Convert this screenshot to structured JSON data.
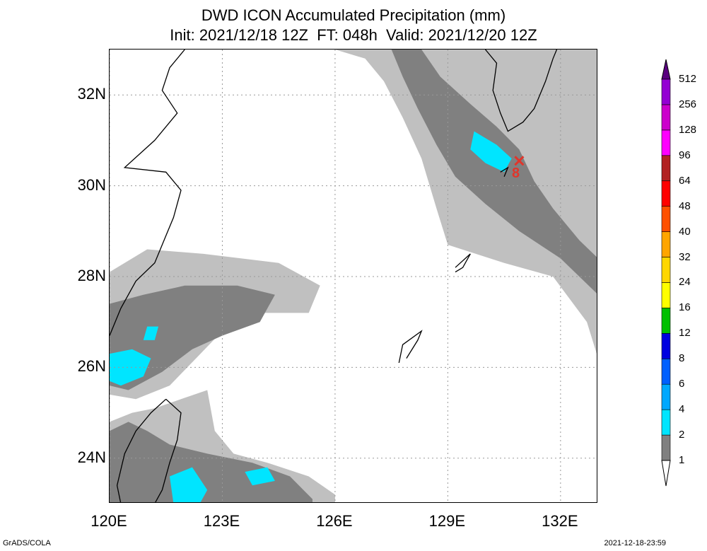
{
  "titles": {
    "line1": "DWD ICON Accumulated Precipitation (mm)",
    "line2": "Init: 2021/12/18 12Z  FT: 048h  Valid: 2021/12/20 12Z"
  },
  "footer": {
    "left": "GrADS/COLA",
    "right": "2021-12-18-23:59"
  },
  "storm_marker": {
    "label": "8",
    "lon": 130.9,
    "lat": 30.55,
    "color": "#e0352b"
  },
  "chart_data": {
    "type": "heatmap",
    "title": "DWD ICON Accumulated Precipitation (mm)",
    "subtitle": "Init: 2021/12/18 12Z  FT: 048h  Valid: 2021/12/20 12Z",
    "xlabel": "",
    "ylabel": "",
    "xlim": [
      120,
      133
    ],
    "ylim": [
      23,
      33
    ],
    "x_ticks": [
      "120E",
      "123E",
      "126E",
      "129E",
      "132E"
    ],
    "x_tick_values": [
      120,
      123,
      126,
      129,
      132
    ],
    "y_ticks": [
      "24N",
      "26N",
      "28N",
      "30N",
      "32N"
    ],
    "y_tick_values": [
      24,
      26,
      28,
      30,
      32
    ],
    "grid": true,
    "colorbar": {
      "levels": [
        "1",
        "2",
        "4",
        "6",
        "8",
        "12",
        "16",
        "24",
        "32",
        "40",
        "48",
        "64",
        "96",
        "128",
        "256",
        "512"
      ],
      "colors": [
        "#c0c0c0",
        "#808080",
        "#00e5ff",
        "#00a8ff",
        "#0060ff",
        "#0000e0",
        "#00c000",
        "#ffff00",
        "#ffd700",
        "#ffa500",
        "#ff5000",
        "#ff0000",
        "#b22222",
        "#ff00ff",
        "#cc00cc",
        "#9400d3",
        "#5a0080"
      ],
      "placement": "right"
    },
    "regions": [
      {
        "level": "1-2 mm",
        "color": "#c0c0c0",
        "polygon": [
          [
            126,
            33
          ],
          [
            126.8,
            32.8
          ],
          [
            127.3,
            32.3
          ],
          [
            127.8,
            31.5
          ],
          [
            128.3,
            30.6
          ],
          [
            128.7,
            29.5
          ],
          [
            129.0,
            28.7
          ],
          [
            130.5,
            28.3
          ],
          [
            131.8,
            28.0
          ],
          [
            132.7,
            27.0
          ],
          [
            133,
            26.2
          ],
          [
            133,
            33
          ]
        ]
      },
      {
        "level": "1-2 mm",
        "color": "#c0c0c0",
        "polygon": [
          [
            120,
            28.1
          ],
          [
            121.0,
            28.6
          ],
          [
            122.5,
            28.5
          ],
          [
            124.5,
            28.3
          ],
          [
            125.6,
            27.8
          ],
          [
            125.3,
            27.2
          ],
          [
            124.0,
            27.2
          ],
          [
            123.0,
            26.8
          ],
          [
            122.3,
            26.2
          ],
          [
            121.6,
            25.6
          ],
          [
            120.7,
            25.3
          ],
          [
            120,
            25.4
          ]
        ]
      },
      {
        "level": "1-2 mm",
        "color": "#c0c0c0",
        "polygon": [
          [
            120,
            24.8
          ],
          [
            120.6,
            25.0
          ],
          [
            121.2,
            25.1
          ],
          [
            121.9,
            25.3
          ],
          [
            122.6,
            25.5
          ],
          [
            122.8,
            24.6
          ],
          [
            123.3,
            24.1
          ],
          [
            124.2,
            23.9
          ],
          [
            125.3,
            23.6
          ],
          [
            126,
            23.2
          ],
          [
            126,
            23
          ],
          [
            120,
            23
          ]
        ]
      },
      {
        "level": "2-4 mm",
        "color": "#808080",
        "polygon": [
          [
            127.5,
            33
          ],
          [
            128.3,
            33
          ],
          [
            128.8,
            32.4
          ],
          [
            129.6,
            31.8
          ],
          [
            130.3,
            31.3
          ],
          [
            130.9,
            30.8
          ],
          [
            131.3,
            30.1
          ],
          [
            131.8,
            29.5
          ],
          [
            132.5,
            28.8
          ],
          [
            133,
            28.4
          ],
          [
            133,
            27.6
          ],
          [
            132.0,
            28.4
          ],
          [
            130.9,
            29.0
          ],
          [
            130.0,
            29.6
          ],
          [
            129.2,
            30.2
          ],
          [
            128.7,
            30.9
          ],
          [
            128.2,
            31.7
          ],
          [
            127.8,
            32.4
          ]
        ]
      },
      {
        "level": "2-4 mm",
        "color": "#808080",
        "polygon": [
          [
            120,
            27.4
          ],
          [
            120.9,
            27.6
          ],
          [
            122.0,
            27.8
          ],
          [
            123.4,
            27.8
          ],
          [
            124.4,
            27.6
          ],
          [
            124.0,
            27.0
          ],
          [
            123.0,
            26.7
          ],
          [
            122.2,
            26.4
          ],
          [
            121.4,
            25.9
          ],
          [
            120.5,
            25.5
          ],
          [
            120,
            25.6
          ]
        ]
      },
      {
        "level": "2-4 mm",
        "color": "#808080",
        "polygon": [
          [
            120,
            24.6
          ],
          [
            120.5,
            24.8
          ],
          [
            121.0,
            24.6
          ],
          [
            121.6,
            24.3
          ],
          [
            122.6,
            24.1
          ],
          [
            123.8,
            23.9
          ],
          [
            124.8,
            23.6
          ],
          [
            125.4,
            23.1
          ],
          [
            125.4,
            23
          ],
          [
            120,
            23
          ]
        ]
      },
      {
        "level": "4-6 mm",
        "color": "#00e5ff",
        "polygon": [
          [
            129.7,
            31.2
          ],
          [
            130.3,
            30.9
          ],
          [
            130.7,
            30.6
          ],
          [
            130.5,
            30.3
          ],
          [
            130.0,
            30.5
          ],
          [
            129.6,
            30.8
          ]
        ]
      },
      {
        "level": "4-6 mm",
        "color": "#00e5ff",
        "polygon": [
          [
            120,
            26.3
          ],
          [
            120.6,
            26.4
          ],
          [
            121.1,
            26.2
          ],
          [
            120.9,
            25.8
          ],
          [
            120.3,
            25.6
          ],
          [
            120,
            25.7
          ]
        ]
      },
      {
        "level": "4-6 mm",
        "color": "#00e5ff",
        "polygon": [
          [
            121.0,
            26.9
          ],
          [
            121.3,
            26.9
          ],
          [
            121.2,
            26.6
          ],
          [
            120.9,
            26.6
          ]
        ]
      },
      {
        "level": "4-6 mm",
        "color": "#00e5ff",
        "polygon": [
          [
            121.6,
            23.6
          ],
          [
            122.2,
            23.8
          ],
          [
            122.6,
            23.3
          ],
          [
            122.4,
            23
          ],
          [
            121.7,
            23
          ]
        ]
      },
      {
        "level": "4-6 mm",
        "color": "#00e5ff",
        "polygon": [
          [
            123.6,
            23.7
          ],
          [
            124.2,
            23.8
          ],
          [
            124.4,
            23.5
          ],
          [
            123.8,
            23.4
          ]
        ]
      }
    ],
    "coastlines": [
      {
        "name": "China coast",
        "points": [
          [
            122.0,
            33
          ],
          [
            121.6,
            32.6
          ],
          [
            121.4,
            32.1
          ],
          [
            121.8,
            31.6
          ],
          [
            121.2,
            31.0
          ],
          [
            120.4,
            30.4
          ],
          [
            121.5,
            30.3
          ],
          [
            121.9,
            29.9
          ],
          [
            121.7,
            29.3
          ],
          [
            121.5,
            28.9
          ],
          [
            121.2,
            28.3
          ],
          [
            120.7,
            27.9
          ],
          [
            120.3,
            27.3
          ],
          [
            120,
            26.7
          ]
        ]
      },
      {
        "name": "Kyushu",
        "points": [
          [
            130.0,
            33
          ],
          [
            130.3,
            32.7
          ],
          [
            130.2,
            32.1
          ],
          [
            130.4,
            31.6
          ],
          [
            130.6,
            31.2
          ],
          [
            131.0,
            31.4
          ],
          [
            131.3,
            31.7
          ],
          [
            131.6,
            32.3
          ],
          [
            131.8,
            32.8
          ],
          [
            131.9,
            33
          ]
        ]
      },
      {
        "name": "Taiwan",
        "points": [
          [
            121.5,
            25.3
          ],
          [
            121.9,
            25.0
          ],
          [
            121.8,
            24.4
          ],
          [
            121.6,
            23.9
          ],
          [
            121.4,
            23.3
          ],
          [
            121.2,
            23
          ],
          [
            120.3,
            23
          ],
          [
            120.2,
            23.4
          ],
          [
            120.4,
            24.1
          ],
          [
            120.7,
            24.6
          ],
          [
            121.1,
            25.0
          ],
          [
            121.5,
            25.3
          ]
        ]
      },
      {
        "name": "Okinawa",
        "points": [
          [
            127.7,
            26.1
          ],
          [
            127.8,
            26.5
          ],
          [
            128.3,
            26.8
          ],
          [
            128.2,
            26.6
          ],
          [
            127.9,
            26.2
          ]
        ]
      },
      {
        "name": "Amami Oshima",
        "points": [
          [
            129.2,
            28.2
          ],
          [
            129.6,
            28.5
          ],
          [
            129.4,
            28.2
          ],
          [
            129.2,
            28.1
          ]
        ]
      },
      {
        "name": "Yakushima",
        "points": [
          [
            130.4,
            30.3
          ],
          [
            130.6,
            30.4
          ],
          [
            130.5,
            30.2
          ]
        ]
      }
    ]
  }
}
